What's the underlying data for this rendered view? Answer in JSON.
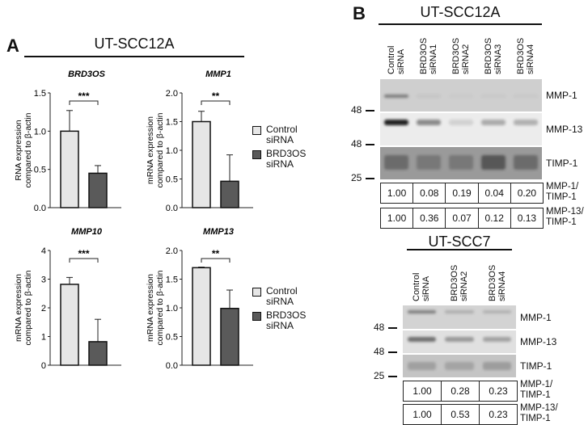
{
  "panel_a": {
    "letter": "A",
    "title": "UT-SCC12A",
    "legend": [
      {
        "label_line1": "Control",
        "label_line2": "siRNA",
        "color": "#e6e6e6"
      },
      {
        "label_line1": "BRD3OS",
        "label_line2": "siRNA",
        "color": "#5a5a5a"
      }
    ]
  },
  "panel_b": {
    "letter": "B",
    "group1": {
      "title": "UT-SCC12A",
      "lanes": [
        {
          "l1": "Control",
          "l2": "siRNA"
        },
        {
          "l1": "BRD3OS",
          "l2": "siRNA1"
        },
        {
          "l1": "BRD3OS",
          "l2": "siRNA2"
        },
        {
          "l1": "BRD3OS",
          "l2": "siRNA3"
        },
        {
          "l1": "BRD3OS",
          "l2": "siRNA4"
        }
      ],
      "proteins": [
        "MMP-1",
        "MMP-13",
        "TIMP-1"
      ],
      "markers": [
        "48",
        "48",
        "25"
      ],
      "ratio_rows": [
        {
          "label_l1": "MMP-1/",
          "label_l2": "TIMP-1",
          "values": [
            "1.00",
            "0.08",
            "0.19",
            "0.04",
            "0.20"
          ]
        },
        {
          "label_l1": "MMP-13/",
          "label_l2": "TIMP-1",
          "values": [
            "1.00",
            "0.36",
            "0.07",
            "0.12",
            "0.13"
          ]
        }
      ]
    },
    "group2": {
      "title": "UT-SCC7",
      "lanes": [
        {
          "l1": "Control",
          "l2": "siRNA"
        },
        {
          "l1": "BRD3OS",
          "l2": "siRNA2"
        },
        {
          "l1": "BRD3OS",
          "l2": "siRNA4"
        }
      ],
      "proteins": [
        "MMP-1",
        "MMP-13",
        "TIMP-1"
      ],
      "markers": [
        "48",
        "48",
        "25"
      ],
      "ratio_rows": [
        {
          "label_l1": "MMP-1/",
          "label_l2": "TIMP-1",
          "values": [
            "1.00",
            "0.28",
            "0.23"
          ]
        },
        {
          "label_l1": "MMP-13/",
          "label_l2": "TIMP-1",
          "values": [
            "1.00",
            "0.53",
            "0.23"
          ]
        }
      ]
    }
  },
  "chart_data": [
    {
      "type": "bar",
      "title": "BRD3OS",
      "ylabel": "RNA expression compared to β-actin",
      "categories": [
        "Control siRNA",
        "BRD3OS siRNA"
      ],
      "values": [
        1.0,
        0.45
      ],
      "errors": [
        0.27,
        0.1
      ],
      "yticks": [
        "0.0",
        "0.5",
        "1.0",
        "1.5"
      ],
      "ylim": [
        0,
        1.5
      ],
      "significance": "***"
    },
    {
      "type": "bar",
      "title": "MMP1",
      "ylabel": "mRNA expression compared to β-actin",
      "categories": [
        "Control siRNA",
        "BRD3OS siRNA"
      ],
      "values": [
        1.5,
        0.46
      ],
      "errors": [
        0.18,
        0.46
      ],
      "yticks": [
        "0.0",
        "0.5",
        "1.0",
        "1.5",
        "2.0"
      ],
      "ylim": [
        0,
        2.0
      ],
      "significance": "**"
    },
    {
      "type": "bar",
      "title": "MMP10",
      "ylabel": "mRNA expression compared to β-actin",
      "categories": [
        "Control siRNA",
        "BRD3OS siRNA"
      ],
      "values": [
        2.82,
        0.82
      ],
      "errors": [
        0.24,
        0.78
      ],
      "yticks": [
        "0",
        "1",
        "2",
        "3",
        "4"
      ],
      "ylim": [
        0,
        4
      ],
      "significance": "***"
    },
    {
      "type": "bar",
      "title": "MMP13",
      "ylabel": "mRNA expression compared to β-actin",
      "categories": [
        "Control siRNA",
        "BRD3OS siRNA"
      ],
      "values": [
        1.7,
        0.99
      ],
      "errors": [
        0.01,
        0.32
      ],
      "yticks": [
        "0.0",
        "0.5",
        "1.0",
        "1.5",
        "2.0"
      ],
      "ylim": [
        0,
        2.0
      ],
      "significance": "**"
    }
  ]
}
